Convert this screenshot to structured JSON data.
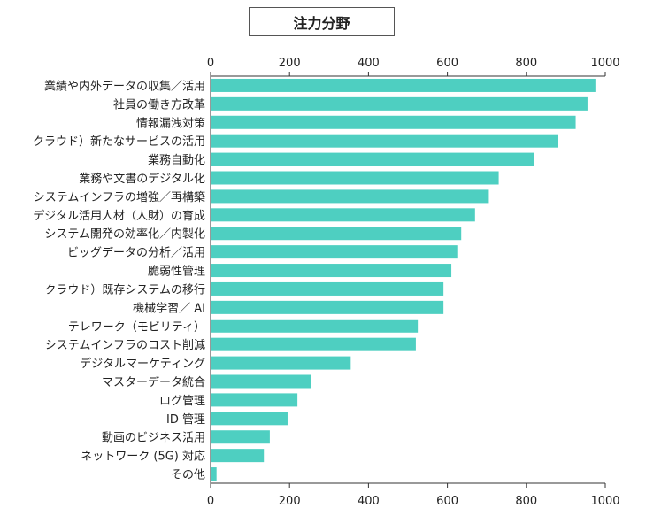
{
  "chart_data": {
    "type": "bar",
    "orientation": "horizontal",
    "title": "注力分野",
    "xlim": [
      0,
      1000
    ],
    "xticks": [
      0,
      200,
      400,
      600,
      800,
      1000
    ],
    "grid": false,
    "bar_color": "#4ecfc1",
    "categories": [
      "業績や内外データの収集／活用",
      "社員の働き方改革",
      "情報漏洩対策",
      "クラウド）新たなサービスの活用",
      "業務自動化",
      "業務や文書のデジタル化",
      "システムインフラの増強／再構築",
      "デジタル活用人材（人財）の育成",
      "システム開発の効率化／内製化",
      "ビッグデータの分析／活用",
      "脆弱性管理",
      "クラウド）既存システムの移行",
      "機械学習／ AI",
      "テレワーク（モビリティ）",
      "システムインフラのコスト削減",
      "デジタルマーケティング",
      "マスターデータ統合",
      "ログ管理",
      "ID 管理",
      "動画のビジネス活用",
      "ネットワーク (5G) 対応",
      "その他"
    ],
    "values": [
      975,
      955,
      925,
      880,
      820,
      730,
      705,
      670,
      635,
      625,
      610,
      590,
      590,
      525,
      520,
      355,
      255,
      220,
      195,
      150,
      135,
      15
    ]
  }
}
